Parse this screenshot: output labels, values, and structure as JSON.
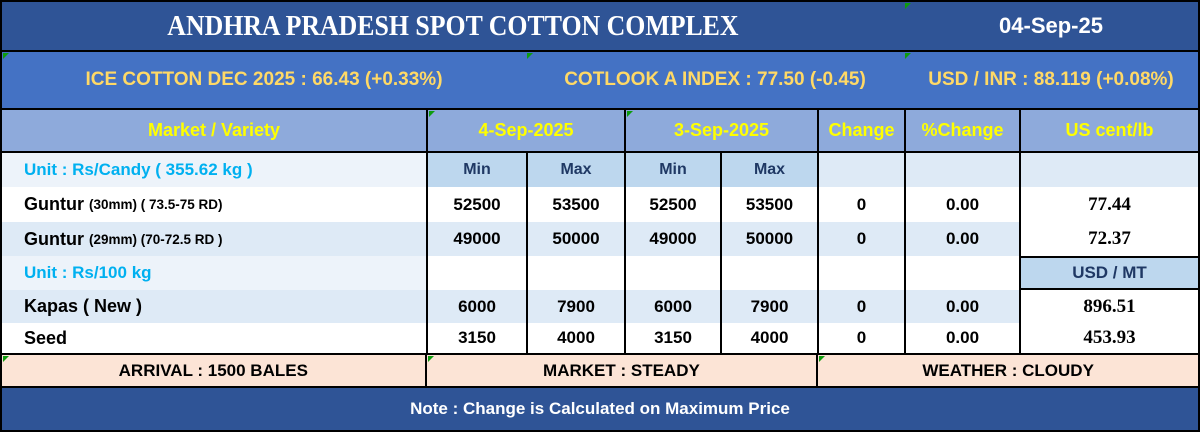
{
  "title_band": {
    "title": "ANDHRA PRADESH SPOT COTTON COMPLEX",
    "date": "04-Sep-25"
  },
  "ticker": {
    "ice": "ICE COTTON DEC 2025 : 66.43 (+0.33%)",
    "cotlook": "COTLOOK A INDEX : 77.50 (-0.45)",
    "usdinr": "USD / INR : 88.119 (+0.08%)"
  },
  "table": {
    "header": {
      "market": "Market / Variety",
      "date1": "4-Sep-2025",
      "date2": "3-Sep-2025",
      "change": "Change",
      "pchange": "%Change",
      "uscent": "US cent/lb"
    },
    "subheader": {
      "min": "Min",
      "max": "Max"
    },
    "unit_candy": {
      "label": "Unit : Rs/Candy ( 355.62 kg )"
    },
    "unit_100kg": {
      "label": "Unit : Rs/100 kg",
      "us_header": "USD / MT"
    },
    "rows": [
      {
        "name": "Guntur",
        "spec": "(30mm) ( 73.5-75 RD)",
        "min1": "52500",
        "max1": "53500",
        "min2": "52500",
        "max2": "53500",
        "change": "0",
        "pchange": "0.00",
        "us": "77.44"
      },
      {
        "name": "Guntur",
        "spec": "(29mm) (70-72.5 RD )",
        "min1": "49000",
        "max1": "50000",
        "min2": "49000",
        "max2": "50000",
        "change": "0",
        "pchange": "0.00",
        "us": "72.37"
      },
      {
        "name": "Kapas ( New )",
        "spec": "",
        "min1": "6000",
        "max1": "7900",
        "min2": "6000",
        "max2": "7900",
        "change": "0",
        "pchange": "0.00",
        "us": "896.51"
      },
      {
        "name": "Seed",
        "spec": "",
        "min1": "3150",
        "max1": "4000",
        "min2": "3150",
        "max2": "4000",
        "change": "0",
        "pchange": "0.00",
        "us": "453.93"
      }
    ]
  },
  "footer": {
    "arrival": "ARRIVAL : 1500 BALES",
    "market": "MARKET : STEADY",
    "weather": "WEATHER : CLOUDY",
    "note": "Note : Change is Calculated on Maximum Price"
  },
  "colors": {
    "band_dark_blue": "#2F5496",
    "band_medium_blue": "#4472C4",
    "header_blue": "#8EAADB",
    "subheader_blue": "#BDD7EE",
    "stripe_blue": "#DEEAF6",
    "unit_row_bg": "#EDF3FA",
    "footer_peach": "#FCE4D6",
    "accent_yellow": "#FFFF00",
    "accent_gold": "#FFD966",
    "accent_cyan": "#00B0F0",
    "navy_text": "#1F3864",
    "flag_green": "#0E9C0E"
  }
}
